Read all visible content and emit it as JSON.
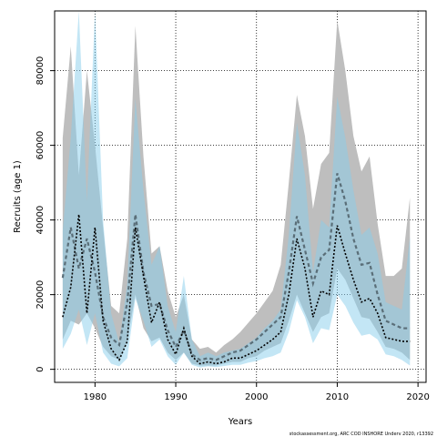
{
  "chart_data": {
    "type": "line",
    "xlabel": "Years",
    "ylabel": "Recruits (age 1)",
    "credit": "stockassessment.org, ARC COD INSHORE Underv 2020, r13392",
    "xlim": [
      1975,
      2021
    ],
    "ylim": [
      -3500,
      96000
    ],
    "xticks": [
      1980,
      1990,
      2000,
      2010,
      2020
    ],
    "yticks": [
      0,
      20000,
      40000,
      60000,
      80000
    ],
    "grid": true,
    "colors": {
      "grey_band": "#bebebe",
      "blue_band": "#87ceeb",
      "blue_band_opacity": 0.5,
      "grey_line": "#5a6e78",
      "black_line": "#000000"
    },
    "series": [
      {
        "years": [
          1976,
          1977,
          1978,
          1979,
          1980,
          1981,
          1982,
          1983,
          1984,
          1985,
          1986,
          1987,
          1988,
          1989,
          1990,
          1991,
          1992,
          1993,
          1994,
          1995,
          1996,
          1997,
          1998,
          1999,
          2000,
          2001,
          2002,
          2003,
          2004,
          2005,
          2006,
          2007,
          2008,
          2009,
          2010,
          2011,
          2012,
          2013,
          2014,
          2015,
          2016,
          2017,
          2018,
          2019
        ],
        "estimate": [
          24500,
          38000,
          27000,
          35000,
          26000,
          14000,
          8500,
          6500,
          18000,
          41500,
          26000,
          17000,
          17500,
          10500,
          6000,
          10500,
          4000,
          2500,
          3000,
          2500,
          3500,
          4500,
          5000,
          6500,
          8000,
          10000,
          12000,
          14000,
          26000,
          41000,
          32000,
          23000,
          30000,
          32000,
          52500,
          45000,
          35000,
          28000,
          28500,
          20000,
          13000,
          12000,
          11000,
          11000
        ],
        "upper": [
          62000,
          86500,
          52000,
          80000,
          60000,
          38000,
          17000,
          15000,
          35000,
          92000,
          57000,
          31000,
          33000,
          21000,
          14000,
          20000,
          8000,
          5500,
          6000,
          4500,
          6500,
          8000,
          10000,
          12500,
          15000,
          18000,
          21000,
          28000,
          50000,
          73500,
          62500,
          43000,
          55000,
          58000,
          93500,
          80000,
          62500,
          53000,
          57000,
          39000,
          25000,
          25000,
          27000,
          46000
        ],
        "lower": [
          8000,
          13000,
          12000,
          15000,
          11000,
          6000,
          3500,
          2500,
          7500,
          20000,
          11000,
          7500,
          8500,
          4500,
          2500,
          4500,
          1500,
          1000,
          1000,
          1000,
          1500,
          2000,
          2000,
          3000,
          3500,
          5000,
          6000,
          7000,
          13000,
          20000,
          15000,
          10000,
          14000,
          15000,
          27000,
          24000,
          19000,
          14000,
          13500,
          10000,
          6000,
          5500,
          4500,
          2500
        ]
      },
      {
        "years": [
          1976,
          1977,
          1978,
          1979,
          1980,
          1981,
          1982,
          1983,
          1984,
          1985,
          1986,
          1987,
          1988,
          1989,
          1990,
          1991,
          1992,
          1993,
          1994,
          1995,
          1996,
          1997,
          1998,
          1999,
          2000,
          2001,
          2002,
          2003,
          2004,
          2005,
          2006,
          2007,
          2008,
          2009,
          2010,
          2011,
          2012,
          2013,
          2014,
          2015,
          2016,
          2017,
          2018,
          2019
        ],
        "estimate": [
          14000,
          22000,
          41500,
          15000,
          38000,
          13000,
          5500,
          2500,
          7500,
          38000,
          25000,
          12500,
          18000,
          8000,
          4000,
          11000,
          3500,
          1500,
          2000,
          1500,
          2000,
          3000,
          3000,
          4000,
          5000,
          6500,
          8000,
          10000,
          20000,
          35000,
          27000,
          14000,
          21000,
          20000,
          38500,
          31000,
          24000,
          18000,
          19000,
          15000,
          8500,
          8000,
          7500,
          7500
        ],
        "upper": [
          37000,
          62000,
          96000,
          45000,
          96000,
          40000,
          15000,
          7000,
          23000,
          72500,
          48000,
          28000,
          33000,
          17000,
          10000,
          25000,
          8000,
          3500,
          4500,
          3500,
          4500,
          5000,
          5500,
          7000,
          8500,
          11000,
          13000,
          16000,
          36000,
          66000,
          52000,
          26000,
          40000,
          38000,
          73000,
          62000,
          48000,
          36000,
          38000,
          31000,
          18000,
          17000,
          16000,
          35500
        ],
        "lower": [
          5500,
          9500,
          16000,
          6500,
          15000,
          4500,
          1500,
          800,
          3000,
          19000,
          13000,
          6000,
          8000,
          3500,
          1200,
          4500,
          1200,
          500,
          800,
          600,
          900,
          1200,
          1200,
          1800,
          2200,
          3000,
          3500,
          4500,
          10000,
          18500,
          14000,
          7000,
          11000,
          10500,
          20000,
          17000,
          12500,
          9000,
          9500,
          8000,
          4000,
          3500,
          2500,
          1000
        ]
      }
    ]
  }
}
